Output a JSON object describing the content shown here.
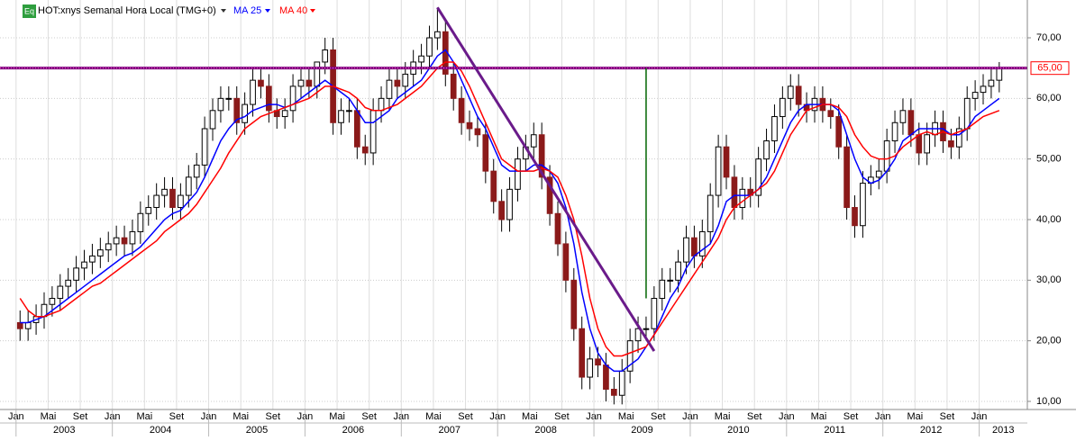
{
  "chart_data": {
    "type": "candlestick",
    "title": "HOT:xnys Semanal Hora Local (TMG+0)",
    "icon_label": "Eq",
    "x": [
      "2003-01",
      "2003-02",
      "2003-03",
      "2003-04",
      "2003-05",
      "2003-06",
      "2003-07",
      "2003-08",
      "2003-09",
      "2003-10",
      "2003-11",
      "2003-12",
      "2004-01",
      "2004-02",
      "2004-03",
      "2004-04",
      "2004-05",
      "2004-06",
      "2004-07",
      "2004-08",
      "2004-09",
      "2004-10",
      "2004-11",
      "2004-12",
      "2005-01",
      "2005-02",
      "2005-03",
      "2005-04",
      "2005-05",
      "2005-06",
      "2005-07",
      "2005-08",
      "2005-09",
      "2005-10",
      "2005-11",
      "2005-12",
      "2006-01",
      "2006-02",
      "2006-03",
      "2006-04",
      "2006-05",
      "2006-06",
      "2006-07",
      "2006-08",
      "2006-09",
      "2006-10",
      "2006-11",
      "2006-12",
      "2007-01",
      "2007-02",
      "2007-03",
      "2007-04",
      "2007-05",
      "2007-06",
      "2007-07",
      "2007-08",
      "2007-09",
      "2007-10",
      "2007-11",
      "2007-12",
      "2008-01",
      "2008-02",
      "2008-03",
      "2008-04",
      "2008-05",
      "2008-06",
      "2008-07",
      "2008-08",
      "2008-09",
      "2008-10",
      "2008-11",
      "2008-12",
      "2009-01",
      "2009-02",
      "2009-03",
      "2009-04",
      "2009-05",
      "2009-06",
      "2009-07",
      "2009-08",
      "2009-09",
      "2009-10",
      "2009-11",
      "2009-12",
      "2010-01",
      "2010-02",
      "2010-03",
      "2010-04",
      "2010-05",
      "2010-06",
      "2010-07",
      "2010-08",
      "2010-09",
      "2010-10",
      "2010-11",
      "2010-12",
      "2011-01",
      "2011-02",
      "2011-03",
      "2011-04",
      "2011-05",
      "2011-06",
      "2011-07",
      "2011-08",
      "2011-09",
      "2011-10",
      "2011-11",
      "2011-12",
      "2012-01",
      "2012-02",
      "2012-03",
      "2012-04",
      "2012-05",
      "2012-06",
      "2012-07",
      "2012-08",
      "2012-09",
      "2012-10",
      "2012-11",
      "2012-12",
      "2013-01",
      "2013-02",
      "2013-03"
    ],
    "open": [
      23,
      22,
      23,
      24,
      26,
      27,
      29,
      30,
      32,
      33,
      34,
      35,
      36,
      37,
      36,
      38,
      41,
      42,
      44,
      45,
      42,
      44,
      47,
      49,
      55,
      58,
      60,
      60,
      56,
      59,
      63,
      62,
      58,
      57,
      58,
      62,
      63,
      62,
      66,
      68,
      56,
      58,
      58,
      52,
      51,
      58,
      60,
      63,
      62,
      64,
      66,
      67,
      70,
      71,
      64,
      60,
      56,
      55,
      54,
      48,
      43,
      40,
      45,
      50,
      52,
      54,
      47,
      41,
      36,
      30,
      22,
      14,
      17,
      16,
      12,
      11,
      15,
      20,
      22,
      22,
      27,
      30,
      30,
      33,
      37,
      34,
      38,
      44,
      52,
      47,
      42,
      45,
      44,
      50,
      53,
      57,
      60,
      62,
      59,
      58,
      60,
      58,
      57,
      52,
      42,
      39,
      46,
      47,
      48,
      53,
      56,
      58,
      54,
      51,
      54,
      56,
      53,
      52,
      55,
      60,
      61,
      62,
      63
    ],
    "high": [
      25,
      25,
      26,
      28,
      29,
      31,
      32,
      34,
      35,
      36,
      37,
      38,
      39,
      39,
      40,
      43,
      44,
      46,
      47,
      47,
      46,
      49,
      51,
      57,
      60,
      62,
      62,
      62,
      61,
      65,
      65,
      64,
      60,
      60,
      64,
      65,
      65,
      66,
      70,
      70,
      60,
      60,
      60,
      54,
      60,
      62,
      65,
      65,
      66,
      68,
      69,
      72,
      75,
      73,
      66,
      62,
      58,
      57,
      56,
      50,
      45,
      47,
      52,
      54,
      56,
      56,
      49,
      43,
      38,
      32,
      24,
      19,
      19,
      18,
      14,
      17,
      22,
      24,
      24,
      29,
      32,
      32,
      35,
      39,
      39,
      40,
      46,
      54,
      54,
      49,
      47,
      47,
      52,
      55,
      59,
      62,
      64,
      64,
      61,
      62,
      62,
      60,
      59,
      54,
      44,
      48,
      49,
      50,
      55,
      58,
      60,
      60,
      56,
      56,
      58,
      58,
      55,
      57,
      62,
      63,
      64,
      65,
      66
    ],
    "low": [
      20,
      20,
      21,
      22,
      24,
      25,
      27,
      28,
      30,
      31,
      32,
      33,
      34,
      34,
      34,
      36,
      39,
      40,
      42,
      40,
      40,
      42,
      45,
      47,
      53,
      56,
      58,
      54,
      54,
      57,
      60,
      56,
      55,
      55,
      56,
      60,
      60,
      60,
      64,
      54,
      54,
      56,
      50,
      49,
      49,
      56,
      58,
      60,
      60,
      62,
      64,
      65,
      68,
      62,
      58,
      54,
      53,
      52,
      46,
      41,
      38,
      38,
      43,
      48,
      50,
      45,
      39,
      34,
      28,
      20,
      12,
      12,
      14,
      10,
      9.5,
      9.5,
      13,
      18,
      20,
      20,
      25,
      28,
      28,
      31,
      32,
      32,
      36,
      42,
      45,
      40,
      40,
      42,
      42,
      48,
      51,
      55,
      58,
      57,
      56,
      56,
      56,
      55,
      50,
      40,
      37,
      37,
      44,
      45,
      46,
      51,
      54,
      52,
      49,
      49,
      52,
      51,
      50,
      50,
      53,
      58,
      59,
      60,
      61
    ],
    "close": [
      22,
      23,
      24,
      26,
      27,
      29,
      30,
      32,
      33,
      34,
      35,
      36,
      37,
      36,
      38,
      41,
      42,
      44,
      45,
      42,
      44,
      47,
      49,
      55,
      58,
      60,
      60,
      56,
      59,
      63,
      62,
      58,
      57,
      58,
      62,
      63,
      62,
      66,
      68,
      56,
      58,
      58,
      52,
      51,
      58,
      60,
      63,
      62,
      64,
      66,
      67,
      70,
      71,
      64,
      60,
      56,
      55,
      54,
      48,
      43,
      40,
      45,
      50,
      52,
      54,
      47,
      41,
      36,
      30,
      22,
      14,
      17,
      16,
      12,
      11,
      15,
      20,
      22,
      22,
      27,
      30,
      30,
      33,
      37,
      34,
      38,
      44,
      52,
      47,
      42,
      45,
      44,
      50,
      53,
      57,
      60,
      62,
      59,
      58,
      60,
      58,
      57,
      52,
      42,
      39,
      46,
      47,
      48,
      53,
      56,
      58,
      54,
      51,
      54,
      56,
      53,
      52,
      55,
      60,
      61,
      62,
      63,
      65
    ],
    "up_color": "#ffffff",
    "down_color": "#8b1a1a",
    "moving_averages": [
      {
        "name": "MA 25",
        "color": "#0000ff",
        "values": [
          23,
          23,
          23.5,
          24,
          25,
          26,
          27,
          28,
          29,
          30,
          31,
          32,
          33,
          34,
          34.5,
          35.5,
          37,
          38.5,
          40,
          41,
          41.5,
          43,
          44.5,
          47,
          50,
          53,
          55,
          56.5,
          57,
          58,
          58.5,
          59,
          59,
          58.5,
          59,
          60,
          61,
          62,
          63,
          62,
          61,
          60,
          58,
          56,
          56,
          57,
          58,
          60,
          61,
          62,
          63,
          65,
          67,
          68,
          66,
          63,
          60,
          57,
          55,
          52,
          49,
          48,
          48,
          48,
          49,
          49,
          48,
          46,
          42,
          36,
          28,
          22,
          18,
          16,
          15,
          15,
          16,
          17,
          19,
          21,
          24,
          27,
          29,
          32,
          34,
          35,
          36,
          39,
          43,
          44,
          44,
          44,
          45,
          47,
          50,
          53,
          56,
          58,
          59,
          59,
          59,
          59,
          58,
          54,
          50,
          47,
          46,
          46.5,
          48,
          50,
          53,
          54,
          55,
          55,
          55,
          55,
          54,
          54,
          55,
          57,
          58,
          59,
          60
        ]
      },
      {
        "name": "MA 40",
        "color": "#ff0000",
        "values": [
          27,
          25,
          24,
          24,
          24.5,
          25,
          26,
          27,
          28,
          29,
          29.5,
          30.5,
          31.5,
          32.5,
          33.5,
          34.5,
          35.5,
          36.5,
          38,
          39,
          40,
          41,
          42.5,
          44.5,
          46.5,
          48.5,
          51,
          53,
          55,
          56,
          57,
          57.5,
          58,
          58.5,
          59,
          59.5,
          60,
          61,
          62,
          62,
          61.5,
          61,
          60,
          58.5,
          58,
          58,
          58.5,
          59,
          60,
          61,
          62,
          63.5,
          65,
          66,
          66,
          64.5,
          62,
          59,
          56,
          53,
          50,
          49,
          48,
          48,
          48,
          48.5,
          48,
          47,
          44,
          40,
          34,
          27,
          22,
          19,
          17.5,
          17.5,
          18,
          18.5,
          19,
          21,
          23,
          25,
          27,
          29,
          31,
          33,
          35,
          37,
          40,
          42,
          43,
          44,
          45,
          46,
          48,
          51,
          54,
          56,
          58,
          58.5,
          59,
          59,
          58.5,
          57,
          54,
          52,
          50.5,
          50,
          50,
          50.5,
          52,
          53,
          54,
          54.5,
          54,
          54.5,
          54,
          54.5,
          55,
          56,
          57,
          57.5,
          58
        ]
      }
    ],
    "hline": {
      "value": 65,
      "label": "65,00",
      "color": "#800080"
    },
    "trendline": {
      "x": [
        "2007-05",
        "2009-08"
      ],
      "y": [
        75,
        18.3
      ],
      "color": "#6a1b8a"
    },
    "vline": {
      "x": "2009-07",
      "y": [
        27,
        65
      ],
      "color": "#006400"
    },
    "xlim": [
      "2002-11",
      "2013-07"
    ],
    "ylim": [
      8.66,
      76.24
    ],
    "yticks": [
      {
        "value": 10,
        "label": "10,00"
      },
      {
        "value": 20,
        "label": "20,00"
      },
      {
        "value": 30,
        "label": "30,00"
      },
      {
        "value": 40,
        "label": "40,00"
      },
      {
        "value": 50,
        "label": "50,00"
      },
      {
        "value": 60,
        "label": "60,00"
      },
      {
        "value": 70,
        "label": "70,00"
      }
    ],
    "xticks": [
      {
        "value": "2003-01",
        "label": "Jan"
      },
      {
        "value": "2003-05",
        "label": "Mai"
      },
      {
        "value": "2003-09",
        "label": "Set"
      },
      {
        "value": "2004-01",
        "label": "Jan"
      },
      {
        "value": "2004-05",
        "label": "Mai"
      },
      {
        "value": "2004-09",
        "label": "Set"
      },
      {
        "value": "2005-01",
        "label": "Jan"
      },
      {
        "value": "2005-05",
        "label": "Mai"
      },
      {
        "value": "2005-09",
        "label": "Set"
      },
      {
        "value": "2006-01",
        "label": "Jan"
      },
      {
        "value": "2006-05",
        "label": "Mai"
      },
      {
        "value": "2006-09",
        "label": "Set"
      },
      {
        "value": "2007-01",
        "label": "Jan"
      },
      {
        "value": "2007-05",
        "label": "Mai"
      },
      {
        "value": "2007-09",
        "label": "Set"
      },
      {
        "value": "2008-01",
        "label": "Jan"
      },
      {
        "value": "2008-05",
        "label": "Mai"
      },
      {
        "value": "2008-09",
        "label": "Set"
      },
      {
        "value": "2009-01",
        "label": "Jan"
      },
      {
        "value": "2009-05",
        "label": "Mai"
      },
      {
        "value": "2009-09",
        "label": "Set"
      },
      {
        "value": "2010-01",
        "label": "Jan"
      },
      {
        "value": "2010-05",
        "label": "Mai"
      },
      {
        "value": "2010-09",
        "label": "Set"
      },
      {
        "value": "2011-01",
        "label": "Jan"
      },
      {
        "value": "2011-05",
        "label": "Mai"
      },
      {
        "value": "2011-09",
        "label": "Set"
      },
      {
        "value": "2012-01",
        "label": "Jan"
      },
      {
        "value": "2012-05",
        "label": "Mai"
      },
      {
        "value": "2012-09",
        "label": "Set"
      },
      {
        "value": "2013-01",
        "label": "Jan"
      }
    ],
    "years": [
      "2003",
      "2004",
      "2005",
      "2006",
      "2007",
      "2008",
      "2009",
      "2010",
      "2011",
      "2012",
      "2013"
    ],
    "grid": true
  }
}
